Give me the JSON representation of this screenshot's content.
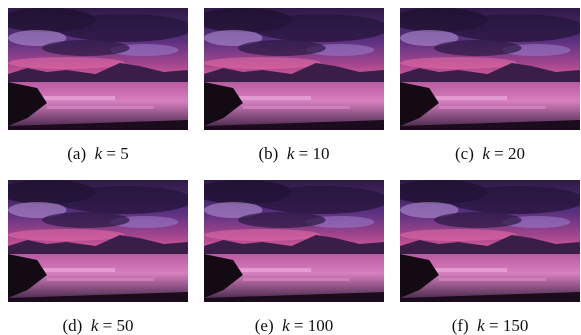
{
  "panels": [
    {
      "label": "(a)",
      "variable": "k",
      "operator": "=",
      "value": 5
    },
    {
      "label": "(b)",
      "variable": "k",
      "operator": "=",
      "value": 10
    },
    {
      "label": "(c)",
      "variable": "k",
      "operator": "=",
      "value": 20
    },
    {
      "label": "(d)",
      "variable": "k",
      "operator": "=",
      "value": 50
    },
    {
      "label": "(e)",
      "variable": "k",
      "operator": "=",
      "value": 100
    },
    {
      "label": "(f)",
      "variable": "k",
      "operator": "=",
      "value": 150
    }
  ]
}
